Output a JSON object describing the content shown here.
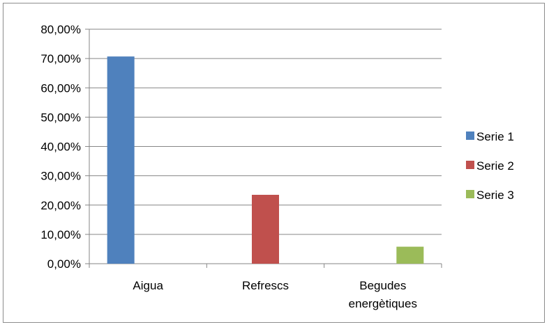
{
  "chart_data": {
    "type": "bar",
    "title": "",
    "xlabel": "",
    "ylabel": "",
    "categories": [
      "Aigua",
      "Refrescs",
      "Begudes energètiques"
    ],
    "series": [
      {
        "name": "Serie 1",
        "color": "#4F81BD",
        "values": [
          70.7,
          null,
          null
        ]
      },
      {
        "name": "Serie 2",
        "color": "#C0504D",
        "values": [
          null,
          23.5,
          null
        ]
      },
      {
        "name": "Serie 3",
        "color": "#9BBB59",
        "values": [
          null,
          null,
          5.8
        ]
      }
    ],
    "ylim": [
      0,
      80
    ],
    "yticks": [
      "0,00%",
      "10,00%",
      "20,00%",
      "30,00%",
      "40,00%",
      "50,00%",
      "60,00%",
      "70,00%",
      "80,00%"
    ],
    "grid": true,
    "legend_position": "right"
  }
}
